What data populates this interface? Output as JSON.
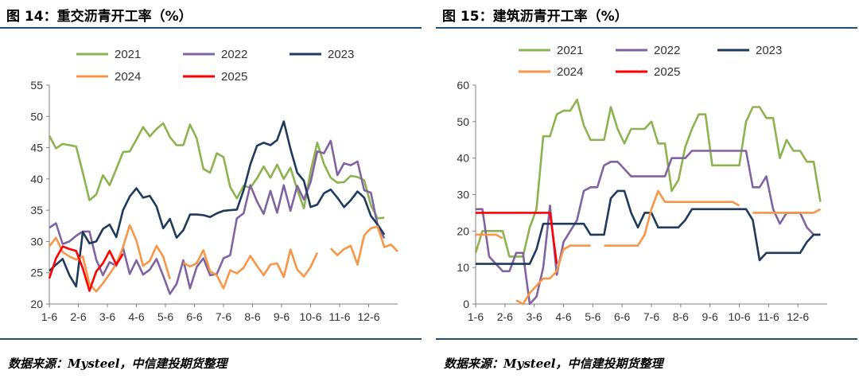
{
  "panels": [
    {
      "title": "图 14：重交沥青开工率（%）",
      "source": "数据来源：Mysteel，中信建投期货整理"
    },
    {
      "title": "图 15：建筑沥青开工率（%）",
      "source": "数据来源：Mysteel，中信建投期货整理"
    }
  ],
  "chart_data": [
    {
      "type": "line",
      "title": "图 14：重交沥青开工率（%）",
      "x_ticks": [
        "1-6",
        "2-6",
        "3-6",
        "4-6",
        "5-6",
        "6-6",
        "7-6",
        "8-6",
        "9-6",
        "10-6",
        "11-6",
        "12-6"
      ],
      "ylim": [
        20,
        55
      ],
      "y_ticks": [
        20,
        25,
        30,
        35,
        40,
        45,
        50,
        55
      ],
      "legend_position": "top",
      "series": [
        {
          "name": "2021",
          "color": "#8db350",
          "values": [
            46.9,
            44.9,
            45.6,
            45.4,
            45.2,
            41.0,
            36.6,
            37.5,
            40.6,
            39.0,
            41.6,
            44.3,
            44.4,
            46.3,
            48.3,
            46.8,
            48.0,
            48.9,
            46.7,
            45.4,
            45.4,
            48.7,
            46.5,
            41.6,
            41.0,
            44.1,
            43.5,
            38.7,
            36.9,
            38.9,
            38.6,
            40.1,
            42.0,
            40.2,
            42.3,
            40.0,
            41.8,
            38.3,
            35.3,
            41.2,
            45.8,
            42.4,
            40.2,
            39.4,
            39.5,
            40.5,
            40.3,
            39.8,
            35.8,
            33.7,
            33.8
          ]
        },
        {
          "name": "2022",
          "color": "#8064a2",
          "values": [
            32.2,
            32.9,
            29.6,
            30.0,
            30.9,
            31.6,
            31.6,
            27.1,
            24.6,
            26.7,
            26.1,
            29.0,
            24.8,
            27.0,
            24.7,
            25.5,
            27.2,
            24.5,
            21.6,
            23.2,
            27.0,
            22.5,
            25.9,
            27.3,
            24.6,
            24.8,
            27.3,
            27.8,
            33.7,
            34.5,
            39.0,
            36.4,
            34.4,
            38.1,
            34.6,
            39.0,
            34.9,
            38.9,
            36.7,
            39.5,
            44.4,
            44.1,
            46.1,
            40.6,
            42.5,
            42.2,
            42.8,
            38.2,
            37.8,
            32.6,
            30.5
          ]
        },
        {
          "name": "2023",
          "color": "#1f3a5a",
          "values": [
            25.3,
            26.3,
            27.2,
            24.6,
            22.8,
            31.5,
            29.7,
            30.0,
            32.0,
            32.7,
            30.7,
            35.0,
            37.2,
            38.5,
            37.0,
            37.3,
            35.6,
            32.1,
            33.6,
            30.6,
            31.8,
            34.3,
            34.3,
            34.2,
            33.9,
            34.5,
            34.9,
            35.0,
            35.1,
            38.2,
            42.3,
            45.3,
            45.8,
            45.4,
            46.2,
            49.2,
            44.8,
            41.0,
            39.7,
            35.5,
            35.9,
            37.7,
            38.3,
            37.0,
            35.5,
            36.6,
            38.0,
            37.0,
            34.1,
            32.7,
            31.1
          ]
        },
        {
          "name": "2024",
          "color": "#f79646",
          "values": [
            29.2,
            30.6,
            28.3,
            27.6,
            27.1,
            27.6,
            23.2,
            22.0,
            23.3,
            24.8,
            26.4,
            29.1,
            32.6,
            30.2,
            26.1,
            26.9,
            29.3,
            27.6,
            24.0,
            null,
            26.6,
            26.0,
            26.5,
            28.6,
            25.2,
            24.6,
            22.5,
            25.4,
            24.9,
            25.8,
            27.7,
            26.1,
            24.6,
            26.3,
            26.5,
            24.3,
            28.7,
            25.5,
            24.4,
            25.9,
            28.2,
            null,
            28.9,
            27.8,
            28.8,
            29.3,
            26.3,
            31.0,
            32.1,
            32.4,
            29.1,
            29.5,
            28.4
          ]
        },
        {
          "name": "2025",
          "color": "#ff0000",
          "values": [
            24.1,
            27.3,
            29.2,
            28.8,
            28.5,
            25.7,
            22.1,
            25.2,
            26.5,
            28.5,
            26.3,
            28.0
          ]
        }
      ]
    },
    {
      "type": "line",
      "title": "图 15：建筑沥青开工率（%）",
      "x_ticks": [
        "1-6",
        "2-6",
        "3-6",
        "4-6",
        "5-6",
        "6-6",
        "7-6",
        "8-6",
        "9-6",
        "10-6",
        "11-6",
        "12-6"
      ],
      "ylim": [
        0,
        60
      ],
      "y_ticks": [
        0,
        10,
        20,
        30,
        40,
        50,
        60
      ],
      "legend_position": "top",
      "series": [
        {
          "name": "2021",
          "color": "#8db350",
          "values": [
            14,
            20,
            20,
            20,
            20,
            13,
            13,
            13,
            21,
            26,
            46,
            46,
            52,
            53,
            53,
            56,
            49,
            45,
            45,
            45,
            54,
            48,
            44,
            48,
            48,
            48,
            50,
            44,
            44,
            31,
            34,
            43,
            48,
            52,
            52,
            38,
            38,
            38,
            38,
            38,
            50,
            54,
            54,
            51,
            51,
            40,
            45,
            42,
            42,
            39,
            39,
            28
          ]
        },
        {
          "name": "2022",
          "color": "#8064a2",
          "values": [
            26,
            26,
            13,
            11,
            9,
            9,
            14,
            14,
            0,
            2,
            10,
            27,
            8,
            17,
            20,
            23,
            31,
            32,
            32,
            38,
            39,
            39,
            37,
            35,
            35,
            35,
            35,
            35,
            35,
            40,
            40,
            40,
            42,
            42,
            42,
            42,
            42,
            42,
            42,
            42,
            42,
            32,
            32,
            35,
            26,
            22,
            25,
            25,
            25,
            21,
            19,
            19
          ]
        },
        {
          "name": "2023",
          "color": "#1f3a5a",
          "values": [
            11,
            11,
            11,
            11,
            11,
            11,
            11,
            11,
            11,
            15,
            22,
            22,
            22,
            22,
            22,
            22,
            22,
            19,
            19,
            19,
            29,
            31,
            31,
            25,
            21,
            25,
            25,
            21,
            21,
            21,
            21,
            23,
            26,
            26,
            26,
            26,
            26,
            26,
            26,
            26,
            26,
            23,
            12,
            14,
            14,
            14,
            14,
            14,
            14,
            17,
            19,
            19
          ]
        },
        {
          "name": "2024",
          "color": "#f79646",
          "values": [
            19,
            19,
            19,
            19,
            18,
            null,
            1,
            0,
            3,
            5,
            7,
            7,
            9,
            15,
            16,
            16,
            16,
            16,
            null,
            16,
            16,
            16,
            16,
            16,
            16,
            19,
            26,
            31,
            28,
            28,
            28,
            28,
            28,
            28,
            28,
            28,
            28,
            28,
            28,
            27,
            null,
            25,
            25,
            25,
            25,
            25,
            25,
            25,
            25,
            25,
            25,
            26
          ]
        },
        {
          "name": "2025",
          "color": "#ff0000",
          "values": [
            25,
            25,
            25,
            25,
            25,
            25,
            25,
            25,
            25,
            25,
            25,
            25,
            11
          ]
        }
      ]
    }
  ]
}
